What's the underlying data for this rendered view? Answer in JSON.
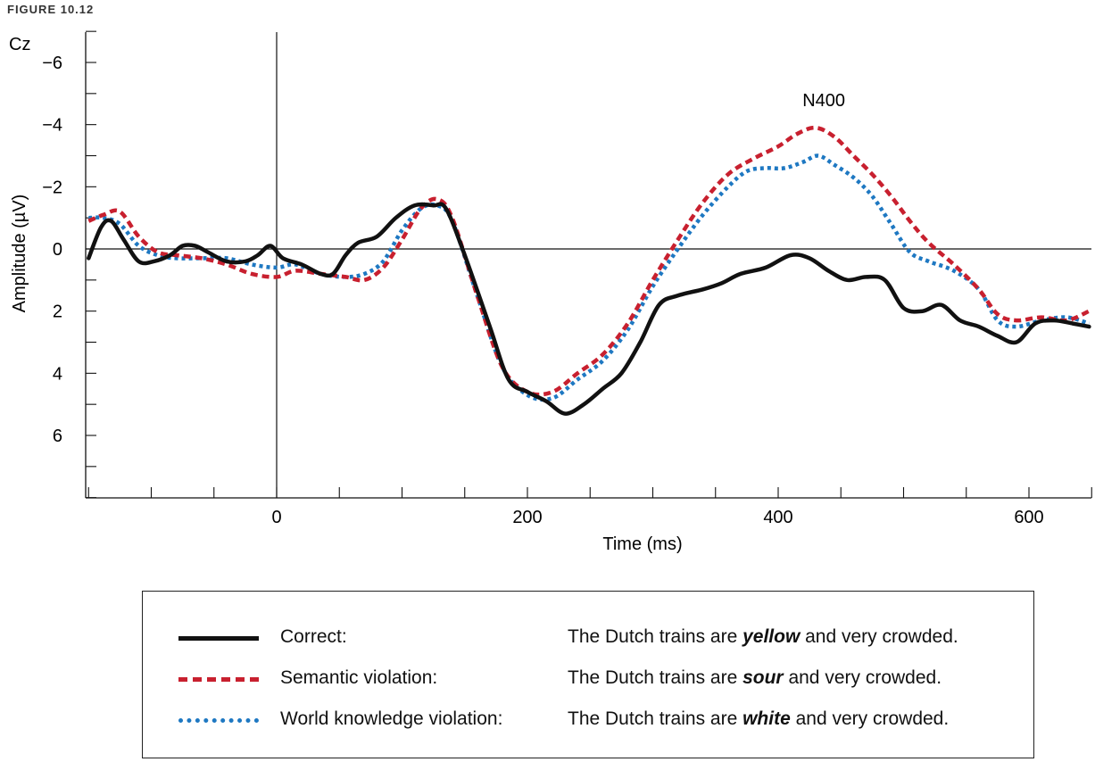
{
  "figure_label": "FIGURE 10.12",
  "chart_data": {
    "type": "line",
    "electrode": "Cz",
    "xlabel": "Time (ms)",
    "ylabel": "Amplitude (µV)",
    "xlim": [
      -152,
      648
    ],
    "ylim": [
      -7,
      8
    ],
    "y_inverted": true,
    "x_ticks": [
      0,
      200,
      400,
      600
    ],
    "y_ticks": [
      -6,
      -4,
      -2,
      0,
      2,
      4,
      6
    ],
    "y_tick_labels": [
      "−6",
      "−4",
      "−2",
      "0",
      "2",
      "4",
      "6"
    ],
    "annotation": {
      "text": "N400",
      "x": 430,
      "y": -4.6
    },
    "series": [
      {
        "name": "Correct:",
        "style": "solid",
        "color": "#111111",
        "points": [
          [
            -150,
            0.3
          ],
          [
            -140,
            -0.7
          ],
          [
            -132,
            -0.9
          ],
          [
            -122,
            -0.3
          ],
          [
            -110,
            0.4
          ],
          [
            -98,
            0.4
          ],
          [
            -85,
            0.2
          ],
          [
            -75,
            -0.1
          ],
          [
            -65,
            -0.1
          ],
          [
            -55,
            0.1
          ],
          [
            -40,
            0.4
          ],
          [
            -25,
            0.4
          ],
          [
            -15,
            0.2
          ],
          [
            -5,
            -0.1
          ],
          [
            5,
            0.3
          ],
          [
            20,
            0.5
          ],
          [
            35,
            0.8
          ],
          [
            45,
            0.8
          ],
          [
            55,
            0.2
          ],
          [
            65,
            -0.2
          ],
          [
            80,
            -0.4
          ],
          [
            95,
            -1.0
          ],
          [
            110,
            -1.4
          ],
          [
            125,
            -1.4
          ],
          [
            135,
            -1.3
          ],
          [
            150,
            0.2
          ],
          [
            170,
            2.5
          ],
          [
            185,
            4.2
          ],
          [
            200,
            4.6
          ],
          [
            215,
            4.9
          ],
          [
            230,
            5.3
          ],
          [
            245,
            5.0
          ],
          [
            260,
            4.5
          ],
          [
            275,
            4.0
          ],
          [
            290,
            3.0
          ],
          [
            305,
            1.8
          ],
          [
            320,
            1.5
          ],
          [
            340,
            1.3
          ],
          [
            355,
            1.1
          ],
          [
            370,
            0.8
          ],
          [
            390,
            0.6
          ],
          [
            410,
            0.2
          ],
          [
            425,
            0.3
          ],
          [
            440,
            0.7
          ],
          [
            455,
            1.0
          ],
          [
            470,
            0.9
          ],
          [
            485,
            1.0
          ],
          [
            500,
            1.9
          ],
          [
            515,
            2.0
          ],
          [
            530,
            1.8
          ],
          [
            545,
            2.3
          ],
          [
            560,
            2.5
          ],
          [
            575,
            2.8
          ],
          [
            590,
            3.0
          ],
          [
            605,
            2.4
          ],
          [
            620,
            2.3
          ],
          [
            635,
            2.4
          ],
          [
            648,
            2.5
          ]
        ]
      },
      {
        "name": "Semantic violation:",
        "style": "dashed",
        "color": "#c8202f",
        "points": [
          [
            -150,
            -0.9
          ],
          [
            -138,
            -1.1
          ],
          [
            -125,
            -1.2
          ],
          [
            -110,
            -0.4
          ],
          [
            -95,
            0.1
          ],
          [
            -80,
            0.2
          ],
          [
            -60,
            0.3
          ],
          [
            -40,
            0.5
          ],
          [
            -20,
            0.8
          ],
          [
            0,
            0.9
          ],
          [
            15,
            0.7
          ],
          [
            35,
            0.8
          ],
          [
            55,
            0.9
          ],
          [
            70,
            1.0
          ],
          [
            85,
            0.6
          ],
          [
            100,
            -0.3
          ],
          [
            115,
            -1.3
          ],
          [
            128,
            -1.6
          ],
          [
            140,
            -1.0
          ],
          [
            160,
            1.5
          ],
          [
            180,
            3.8
          ],
          [
            200,
            4.6
          ],
          [
            220,
            4.6
          ],
          [
            240,
            4.0
          ],
          [
            260,
            3.4
          ],
          [
            280,
            2.4
          ],
          [
            300,
            1.0
          ],
          [
            320,
            -0.3
          ],
          [
            340,
            -1.5
          ],
          [
            360,
            -2.4
          ],
          [
            380,
            -2.9
          ],
          [
            400,
            -3.3
          ],
          [
            415,
            -3.7
          ],
          [
            430,
            -3.9
          ],
          [
            445,
            -3.6
          ],
          [
            460,
            -3.0
          ],
          [
            475,
            -2.4
          ],
          [
            490,
            -1.7
          ],
          [
            505,
            -0.9
          ],
          [
            520,
            -0.2
          ],
          [
            540,
            0.5
          ],
          [
            560,
            1.3
          ],
          [
            575,
            2.1
          ],
          [
            590,
            2.3
          ],
          [
            610,
            2.2
          ],
          [
            630,
            2.3
          ],
          [
            648,
            2.0
          ]
        ]
      },
      {
        "name": "World knowledge violation:",
        "style": "dotted",
        "color": "#1e78c2",
        "points": [
          [
            -150,
            -1.0
          ],
          [
            -138,
            -1.0
          ],
          [
            -125,
            -0.8
          ],
          [
            -110,
            -0.1
          ],
          [
            -95,
            0.2
          ],
          [
            -80,
            0.3
          ],
          [
            -60,
            0.3
          ],
          [
            -40,
            0.3
          ],
          [
            -20,
            0.5
          ],
          [
            0,
            0.6
          ],
          [
            15,
            0.5
          ],
          [
            35,
            0.8
          ],
          [
            55,
            0.9
          ],
          [
            70,
            0.8
          ],
          [
            85,
            0.4
          ],
          [
            100,
            -0.6
          ],
          [
            115,
            -1.3
          ],
          [
            128,
            -1.4
          ],
          [
            140,
            -0.9
          ],
          [
            160,
            1.5
          ],
          [
            180,
            3.8
          ],
          [
            200,
            4.7
          ],
          [
            220,
            4.8
          ],
          [
            240,
            4.2
          ],
          [
            260,
            3.6
          ],
          [
            280,
            2.6
          ],
          [
            300,
            1.2
          ],
          [
            320,
            0.0
          ],
          [
            340,
            -1.1
          ],
          [
            360,
            -2.0
          ],
          [
            375,
            -2.5
          ],
          [
            390,
            -2.6
          ],
          [
            405,
            -2.6
          ],
          [
            420,
            -2.8
          ],
          [
            432,
            -3.0
          ],
          [
            445,
            -2.7
          ],
          [
            460,
            -2.3
          ],
          [
            475,
            -1.7
          ],
          [
            490,
            -0.8
          ],
          [
            505,
            0.1
          ],
          [
            520,
            0.4
          ],
          [
            540,
            0.7
          ],
          [
            560,
            1.3
          ],
          [
            575,
            2.3
          ],
          [
            590,
            2.5
          ],
          [
            610,
            2.3
          ],
          [
            630,
            2.2
          ],
          [
            648,
            2.4
          ]
        ]
      }
    ]
  },
  "legend": {
    "entries": [
      {
        "name": "Correct:",
        "sentence_before": "The Dutch trains are ",
        "sentence_word": "yellow",
        "sentence_after": " and very crowded.",
        "color": "#111111",
        "style": "solid"
      },
      {
        "name": "Semantic violation:",
        "sentence_before": "The Dutch trains are ",
        "sentence_word": "sour",
        "sentence_after": " and very crowded.",
        "color": "#c8202f",
        "style": "dashed"
      },
      {
        "name": "World knowledge violation:",
        "sentence_before": "The Dutch trains are ",
        "sentence_word": "white",
        "sentence_after": " and very crowded.",
        "color": "#1e78c2",
        "style": "dotted"
      }
    ]
  }
}
